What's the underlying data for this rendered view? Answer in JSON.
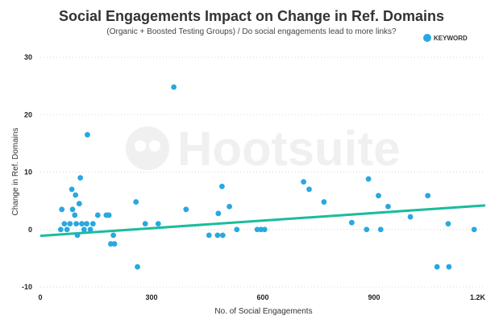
{
  "chart_data": {
    "type": "scatter",
    "title": "Social Engagements Impact on Change in Ref. Domains",
    "subtitle": "(Organic + Boosted Testing Groups) / Do social engagements lead to more links?",
    "xlabel": "No. of Social Engagements",
    "ylabel": "Change in Ref. Domains",
    "xlim": [
      0,
      1200
    ],
    "ylim": [
      -10,
      30
    ],
    "x_ticks": [
      {
        "value": 0,
        "label": "0"
      },
      {
        "value": 300,
        "label": "300"
      },
      {
        "value": 600,
        "label": "600"
      },
      {
        "value": 900,
        "label": "900"
      },
      {
        "value": 1200,
        "label": "1.2K"
      }
    ],
    "y_ticks": [
      {
        "value": -10,
        "label": "-10"
      },
      {
        "value": 0,
        "label": "0"
      },
      {
        "value": 10,
        "label": "10"
      },
      {
        "value": 20,
        "label": "20"
      },
      {
        "value": 30,
        "label": "30"
      }
    ],
    "grid": "horizontal-dotted",
    "legend_position": "top-right",
    "watermark": "Hootsuite",
    "trendline": {
      "x": [
        0,
        1200
      ],
      "y": [
        -1.1,
        4.2
      ],
      "color": "#1bbc9c"
    },
    "series": [
      {
        "name": "KEYWORD",
        "color": "#29a8e0",
        "points": [
          [
            55,
            0
          ],
          [
            58,
            3.5
          ],
          [
            65,
            1
          ],
          [
            72,
            0
          ],
          [
            80,
            1
          ],
          [
            85,
            7
          ],
          [
            87,
            3.5
          ],
          [
            93,
            2.5
          ],
          [
            95,
            6
          ],
          [
            97,
            1
          ],
          [
            100,
            -1
          ],
          [
            105,
            4.5
          ],
          [
            108,
            9
          ],
          [
            112,
            1
          ],
          [
            118,
            0
          ],
          [
            125,
            1
          ],
          [
            127,
            16.5
          ],
          [
            135,
            0
          ],
          [
            142,
            1
          ],
          [
            155,
            2.5
          ],
          [
            178,
            2.5
          ],
          [
            185,
            2.5
          ],
          [
            190,
            -2.5
          ],
          [
            197,
            -1
          ],
          [
            200,
            -2.5
          ],
          [
            258,
            4.8
          ],
          [
            262,
            -6.5
          ],
          [
            283,
            1
          ],
          [
            318,
            1
          ],
          [
            360,
            24.8
          ],
          [
            393,
            3.5
          ],
          [
            455,
            -1
          ],
          [
            478,
            -1
          ],
          [
            480,
            2.8
          ],
          [
            490,
            7.5
          ],
          [
            492,
            -1
          ],
          [
            510,
            4
          ],
          [
            530,
            0
          ],
          [
            585,
            0
          ],
          [
            595,
            0
          ],
          [
            605,
            0
          ],
          [
            710,
            8.3
          ],
          [
            725,
            7
          ],
          [
            765,
            4.8
          ],
          [
            840,
            1.2
          ],
          [
            880,
            0
          ],
          [
            885,
            8.8
          ],
          [
            912,
            5.9
          ],
          [
            918,
            0
          ],
          [
            938,
            4
          ],
          [
            998,
            2.2
          ],
          [
            1045,
            5.9
          ],
          [
            1070,
            -6.5
          ],
          [
            1100,
            1
          ],
          [
            1102,
            -6.5
          ],
          [
            1170,
            0
          ]
        ]
      }
    ]
  }
}
